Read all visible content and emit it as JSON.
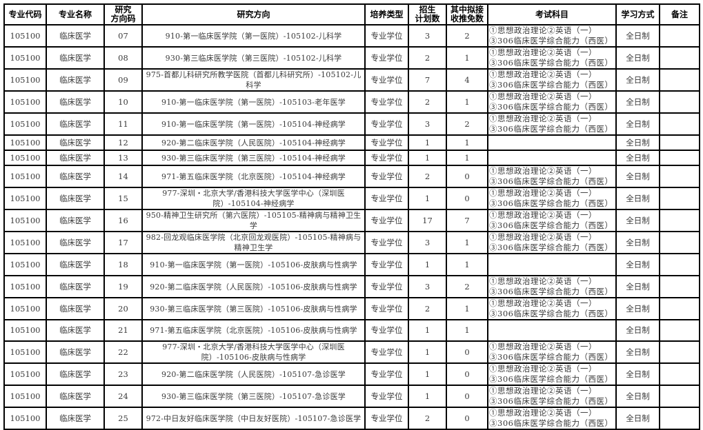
{
  "headers": [
    "专业代码",
    "专业名称",
    "研究\n方向码",
    "研究方向",
    "培养类型",
    "招生\n计划数",
    "其中拟接\n收推免数",
    "考试科目",
    "学习方式",
    "备注"
  ],
  "rows": [
    {
      "code": "105100",
      "name": "临床医学",
      "dir_code": "07",
      "direction": "910-第一临床医学院（第一医院）-105102-儿科学",
      "type": "专业学位",
      "plan": "3",
      "exempt": "2",
      "exam": "①思想政治理论②英语（一）③306临床医学综合能力（西医）",
      "mode": "全日制",
      "note": ""
    },
    {
      "code": "105100",
      "name": "临床医学",
      "dir_code": "08",
      "direction": "930-第三临床医学院（第三医院）-105102-儿科学",
      "type": "专业学位",
      "plan": "2",
      "exempt": "1",
      "exam": "①思想政治理论②英语（一）③306临床医学综合能力（西医）",
      "mode": "全日制",
      "note": ""
    },
    {
      "code": "105100",
      "name": "临床医学",
      "dir_code": "09",
      "direction": "975-首都儿科研究所教学医院（首都儿科研究所）-105102-儿科学",
      "type": "专业学位",
      "plan": "7",
      "exempt": "4",
      "exam": "①思想政治理论②英语（一）③306临床医学综合能力（西医）",
      "mode": "全日制",
      "note": ""
    },
    {
      "code": "105100",
      "name": "临床医学",
      "dir_code": "10",
      "direction": "910-第一临床医学院（第一医院）-105103-老年医学",
      "type": "专业学位",
      "plan": "2",
      "exempt": "1",
      "exam": "①思想政治理论②英语（一）③306临床医学综合能力（西医）",
      "mode": "全日制",
      "note": ""
    },
    {
      "code": "105100",
      "name": "临床医学",
      "dir_code": "11",
      "direction": "910-第一临床医学院（第一医院）-105104-神经病学",
      "type": "专业学位",
      "plan": "3",
      "exempt": "2",
      "exam": "①思想政治理论②英语（一）③306临床医学综合能力（西医）",
      "mode": "全日制",
      "note": ""
    },
    {
      "code": "105100",
      "name": "临床医学",
      "dir_code": "12",
      "direction": "920-第二临床医学院（人民医院）-105104-神经病学",
      "type": "专业学位",
      "plan": "1",
      "exempt": "1",
      "exam": "",
      "mode": "全日制",
      "note": ""
    },
    {
      "code": "105100",
      "name": "临床医学",
      "dir_code": "13",
      "direction": "930-第三临床医学院（第三医院）-105104-神经病学",
      "type": "专业学位",
      "plan": "1",
      "exempt": "1",
      "exam": "",
      "mode": "全日制",
      "note": ""
    },
    {
      "code": "105100",
      "name": "临床医学",
      "dir_code": "14",
      "direction": "971-第五临床医学院（北京医院）-105104-神经病学",
      "type": "专业学位",
      "plan": "2",
      "exempt": "0",
      "exam": "①思想政治理论②英语（一）③306临床医学综合能力（西医）",
      "mode": "全日制",
      "note": ""
    },
    {
      "code": "105100",
      "name": "临床医学",
      "dir_code": "15",
      "direction": "977-深圳・北京大学/香港科技大学医学中心（深圳医院）-105104-神经病学",
      "type": "专业学位",
      "plan": "1",
      "exempt": "0",
      "exam": "①思想政治理论②英语（一）③306临床医学综合能力（西医）",
      "mode": "全日制",
      "note": ""
    },
    {
      "code": "105100",
      "name": "临床医学",
      "dir_code": "16",
      "direction": "950-精神卫生研究所（第六医院）-105105-精神病与精神卫生学",
      "type": "专业学位",
      "plan": "17",
      "exempt": "7",
      "exam": "①思想政治理论②英语（一）③306临床医学综合能力（西医）",
      "mode": "全日制",
      "note": ""
    },
    {
      "code": "105100",
      "name": "临床医学",
      "dir_code": "17",
      "direction": "982-回龙观临床医学院（北京回龙观医院）-105105-精神病与精神卫生学",
      "type": "专业学位",
      "plan": "3",
      "exempt": "1",
      "exam": "①思想政治理论②英语（一）③306临床医学综合能力（西医）",
      "mode": "全日制",
      "note": ""
    },
    {
      "code": "105100",
      "name": "临床医学",
      "dir_code": "18",
      "direction": "910-第一临床医学院（第一医院）-105106-皮肤病与性病学",
      "type": "专业学位",
      "plan": "1",
      "exempt": "1",
      "exam": "",
      "mode": "全日制",
      "note": ""
    },
    {
      "code": "105100",
      "name": "临床医学",
      "dir_code": "19",
      "direction": "920-第二临床医学院（人民医院）-105106-皮肤病与性病学",
      "type": "专业学位",
      "plan": "3",
      "exempt": "2",
      "exam": "①思想政治理论②英语（一）③306临床医学综合能力（西医）",
      "mode": "全日制",
      "note": ""
    },
    {
      "code": "105100",
      "name": "临床医学",
      "dir_code": "20",
      "direction": "930-第三临床医学院（第三医院）-105106-皮肤病与性病学",
      "type": "专业学位",
      "plan": "2",
      "exempt": "1",
      "exam": "①思想政治理论②英语（一）③306临床医学综合能力（西医）",
      "mode": "全日制",
      "note": ""
    },
    {
      "code": "105100",
      "name": "临床医学",
      "dir_code": "21",
      "direction": "971-第五临床医学院（北京医院）-105106-皮肤病与性病学",
      "type": "专业学位",
      "plan": "1",
      "exempt": "1",
      "exam": "",
      "mode": "全日制",
      "note": ""
    },
    {
      "code": "105100",
      "name": "临床医学",
      "dir_code": "22",
      "direction": "977-深圳・北京大学/香港科技大学医学中心（深圳医院）-105106-皮肤病与性病学",
      "type": "专业学位",
      "plan": "1",
      "exempt": "0",
      "exam": "①思想政治理论②英语（一）③306临床医学综合能力（西医）",
      "mode": "全日制",
      "note": ""
    },
    {
      "code": "105100",
      "name": "临床医学",
      "dir_code": "23",
      "direction": "920-第二临床医学院（人民医院）-105107-急诊医学",
      "type": "专业学位",
      "plan": "1",
      "exempt": "0",
      "exam": "①思想政治理论②英语（一）③306临床医学综合能力（西医）",
      "mode": "全日制",
      "note": ""
    },
    {
      "code": "105100",
      "name": "临床医学",
      "dir_code": "24",
      "direction": "930-第三临床医学院（第三医院）-105107-急诊医学",
      "type": "专业学位",
      "plan": "1",
      "exempt": "0",
      "exam": "①思想政治理论②英语（一）③306临床医学综合能力（西医）",
      "mode": "全日制",
      "note": ""
    },
    {
      "code": "105100",
      "name": "临床医学",
      "dir_code": "25",
      "direction": "972-中日友好临床医学院（中日友好医院）-105107-急诊医学",
      "type": "专业学位",
      "plan": "2",
      "exempt": "0",
      "exam": "①思想政治理论②英语（一）③306临床医学综合能力（西医）",
      "mode": "全日制",
      "note": ""
    }
  ]
}
